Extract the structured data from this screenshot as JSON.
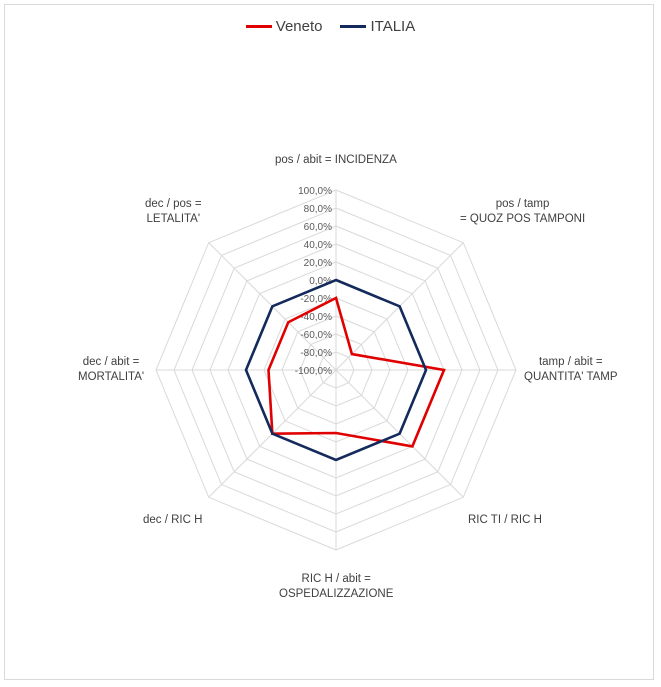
{
  "chart_data": {
    "type": "radar",
    "title": "",
    "axes": [
      [
        "pos / abit = INCIDENZA"
      ],
      [
        "pos / tamp",
        "= QUOZ POS TAMPONI"
      ],
      [
        "tamp / abit =",
        "QUANTITA' TAMP"
      ],
      [
        "RIC TI / RIC H"
      ],
      [
        "RIC H / abit =",
        "OSPEDALIZZAZIONE"
      ],
      [
        "dec  / RIC H"
      ],
      [
        "dec / abit =",
        "MORTALITA'"
      ],
      [
        "dec / pos =",
        "LETALITA'"
      ]
    ],
    "radial_range": [
      -100,
      100
    ],
    "radial_step": 20,
    "tick_labels": [
      "100,0%",
      "80,0%",
      "60,0%",
      "40,0%",
      "20,0%",
      "0,0%",
      "-20,0%",
      "-40,0%",
      "-60,0%",
      "-80,0%",
      "-100,0%"
    ],
    "series": [
      {
        "name": "Veneto",
        "color": "#e00000",
        "values": [
          -20,
          -75,
          20,
          20,
          -30,
          0,
          -25,
          -25
        ]
      },
      {
        "name": "ITALIA",
        "color": "#142a5c",
        "values": [
          0,
          0,
          0,
          0,
          0,
          0,
          0,
          0
        ]
      }
    ],
    "legend_position": "top",
    "grid": true
  }
}
